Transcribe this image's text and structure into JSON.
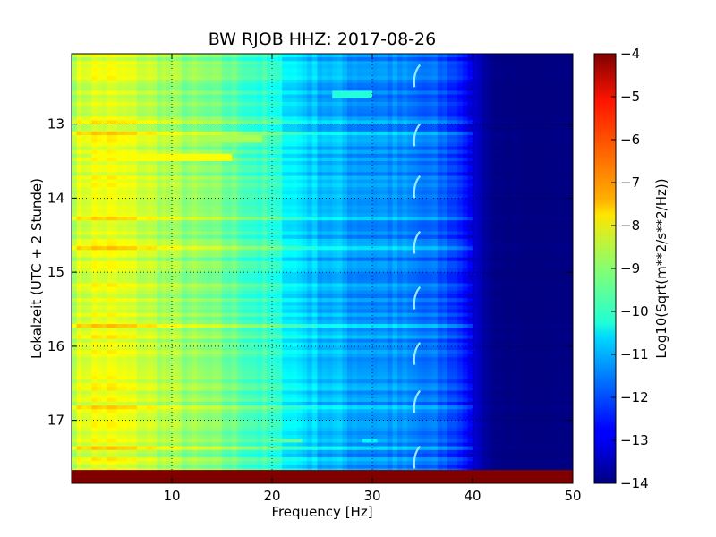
{
  "chart_data": {
    "type": "heatmap",
    "title": "BW RJOB HHZ: 2017-08-26",
    "xlabel": "Frequency [Hz]",
    "ylabel": "Lokalzeit (UTC + 2 Stunde)",
    "xlim": [
      0,
      50
    ],
    "ylim": [
      17.85,
      12.05
    ],
    "x_ticks": [
      10,
      20,
      30,
      40,
      50
    ],
    "y_ticks": [
      13,
      14,
      15,
      16,
      17
    ],
    "grid": true,
    "colormap": "jet",
    "colorbar": {
      "label": "Log10(Sqrt(m**2/s**2/Hz))",
      "range": [
        -14,
        -4
      ],
      "ticks": [
        -4,
        -5,
        -6,
        -7,
        -8,
        -9,
        -10,
        -11,
        -12,
        -13,
        -14
      ]
    },
    "spectrum_profile": {
      "frequency": [
        0,
        1,
        2,
        4,
        6,
        8,
        10,
        12,
        14,
        16,
        18,
        20,
        22,
        24,
        26,
        28,
        30,
        32,
        34,
        36,
        38,
        39,
        40,
        41,
        42,
        45,
        50
      ],
      "level": [
        -8.4,
        -8.2,
        -8.0,
        -8.0,
        -8.2,
        -8.4,
        -8.7,
        -8.9,
        -9.1,
        -9.3,
        -9.6,
        -9.9,
        -10.4,
        -10.8,
        -11.0,
        -11.2,
        -11.3,
        -11.4,
        -11.6,
        -11.8,
        -12.1,
        -12.5,
        -13.1,
        -13.6,
        -13.9,
        -14.0,
        -14.0
      ]
    },
    "annotations": [
      {
        "kind": "bright-streak",
        "time": 13.21,
        "freq_range": [
          4.5,
          19
        ],
        "level": -8.6
      },
      {
        "kind": "bright-streak",
        "time": 13.45,
        "freq_range": [
          2,
          16
        ],
        "level": -7.8
      },
      {
        "kind": "bright-streak",
        "time": 12.61,
        "freq_range": [
          26,
          30
        ],
        "level": -9.9
      },
      {
        "kind": "bright-streak",
        "time": 17.28,
        "freq_range": [
          19.5,
          23
        ],
        "level": -9.3
      },
      {
        "kind": "bright-streak",
        "time": 17.28,
        "freq_range": [
          29,
          30.5
        ],
        "level": -10.3
      },
      {
        "kind": "tonal-line",
        "freq": 34.3,
        "time_starts": [
          12.2,
          13.0,
          13.7,
          14.45,
          15.2,
          15.95,
          16.6,
          17.35
        ]
      }
    ],
    "missing_data": {
      "time_range": [
        17.67,
        17.85
      ],
      "level": -4
    }
  }
}
